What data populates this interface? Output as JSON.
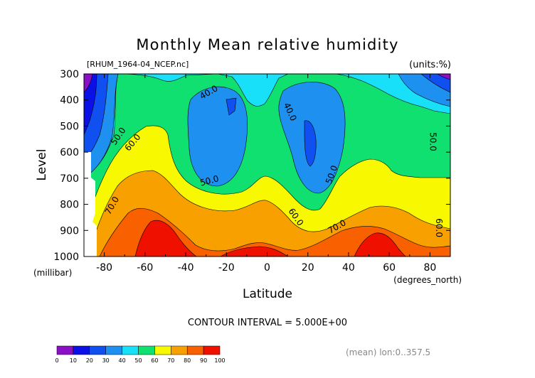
{
  "chart_data": {
    "type": "heatmap",
    "title": "Monthly Mean relative humidity",
    "file_label": "[RHUM_1964-04_NCEP.nc]",
    "units_label": "(units:%)",
    "ylabel": "Level",
    "ylabel_units": "(millibar)",
    "xlabel": "Latitude",
    "xlabel_units": "(degrees_north)",
    "xlim": [
      -90,
      90
    ],
    "ylim": [
      1000,
      300
    ],
    "x_ticks": [
      -80,
      -60,
      -40,
      -20,
      0,
      20,
      40,
      60,
      80
    ],
    "y_ticks": [
      300,
      400,
      500,
      600,
      700,
      800,
      900,
      1000
    ],
    "contour_interval_text": "CONTOUR INTERVAL = 5.000E+00",
    "mean_text": "(mean) lon:0..357.5",
    "colorbar": {
      "levels": [
        0,
        10,
        20,
        30,
        40,
        50,
        60,
        70,
        80,
        90,
        100
      ],
      "colors": [
        "#8a10c8",
        "#0a10e6",
        "#1050f0",
        "#1e90f0",
        "#18e0f8",
        "#10e070",
        "#f8f800",
        "#f8a000",
        "#f86000",
        "#f01000"
      ]
    },
    "fill_regions": [
      {
        "level": 80,
        "points": [
          [
            -88,
            1000
          ],
          [
            -82,
            950
          ],
          [
            -78,
            890
          ],
          [
            -74,
            855
          ],
          [
            -70,
            840
          ],
          [
            -60,
            820
          ],
          [
            -50,
            850
          ],
          [
            -40,
            900
          ],
          [
            -30,
            940
          ],
          [
            -20,
            960
          ],
          [
            -12,
            945
          ],
          [
            -5,
            920
          ],
          [
            0,
            900
          ],
          [
            8,
            890
          ],
          [
            14,
            905
          ],
          [
            20,
            925
          ],
          [
            28,
            935
          ],
          [
            36,
            925
          ],
          [
            46,
            910
          ],
          [
            56,
            895
          ],
          [
            66,
            895
          ],
          [
            72,
            885
          ],
          [
            78,
            900
          ],
          [
            82,
            925
          ],
          [
            86,
            960
          ],
          [
            88,
            1000
          ]
        ]
      },
      {
        "level": 90,
        "points": [
          [
            -72,
            1000
          ],
          [
            -70,
            960
          ],
          [
            -66,
            890
          ],
          [
            -62,
            860
          ],
          [
            -56,
            860
          ],
          [
            -50,
            880
          ],
          [
            -45,
            920
          ],
          [
            -40,
            950
          ],
          [
            -36,
            975
          ],
          [
            -35,
            1000
          ]
        ]
      },
      {
        "level": 90,
        "points": [
          [
            -20,
            1000
          ],
          [
            -14,
            990
          ],
          [
            -6,
            980
          ],
          [
            0,
            970
          ],
          [
            6,
            975
          ],
          [
            12,
            990
          ],
          [
            16,
            1000
          ]
        ]
      },
      {
        "level": 90,
        "points": [
          [
            40,
            1000
          ],
          [
            44,
            960
          ],
          [
            50,
            930
          ],
          [
            56,
            925
          ],
          [
            62,
            940
          ],
          [
            66,
            975
          ],
          [
            68,
            1000
          ]
        ]
      },
      {
        "level": 100,
        "points": [
          [
            -62,
            930
          ],
          [
            -55,
            925
          ],
          [
            -54,
            932
          ],
          [
            -62,
            936
          ]
        ]
      }
    ],
    "contour_labels": [
      {
        "text": "40.0",
        "lat": -28,
        "lev": 380,
        "rot": -30
      },
      {
        "text": "40.0",
        "lat": 10,
        "lev": 450,
        "rot": 65
      },
      {
        "text": "50.0",
        "lat": -72,
        "lev": 545,
        "rot": -55
      },
      {
        "text": "60.0",
        "lat": -65,
        "lev": 570,
        "rot": -50
      },
      {
        "text": "50.0",
        "lat": -28,
        "lev": 720,
        "rot": -15
      },
      {
        "text": "50.0",
        "lat": 33,
        "lev": 690,
        "rot": -70
      },
      {
        "text": "50.0",
        "lat": 80,
        "lev": 560,
        "rot": 90
      },
      {
        "text": "70.0",
        "lat": -75,
        "lev": 810,
        "rot": -60
      },
      {
        "text": "60.0",
        "lat": 13,
        "lev": 855,
        "rot": 55
      },
      {
        "text": "70.0",
        "lat": 35,
        "lev": 895,
        "rot": -30
      },
      {
        "text": "60.0",
        "lat": 83,
        "lev": 890,
        "rot": 90
      }
    ]
  }
}
